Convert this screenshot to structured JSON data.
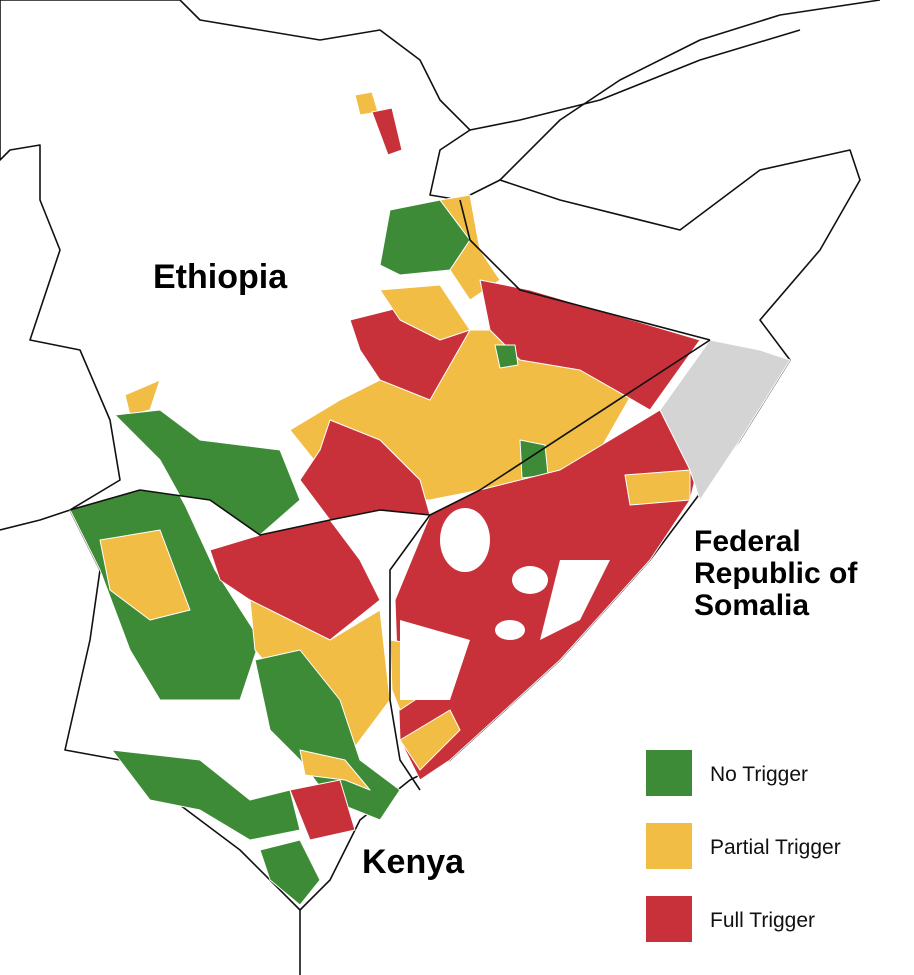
{
  "labels": {
    "ethiopia": "Ethiopia",
    "somalia": [
      "Federal",
      "Republic of",
      "Somalia"
    ],
    "kenya": "Kenya"
  },
  "legend": [
    {
      "label": "No Trigger",
      "color": "#3d8b37"
    },
    {
      "label": "Partial Trigger",
      "color": "#f2bd45"
    },
    {
      "label": "Full Trigger",
      "color": "#c8313a"
    }
  ],
  "no_data_color": "#d4d4d4"
}
